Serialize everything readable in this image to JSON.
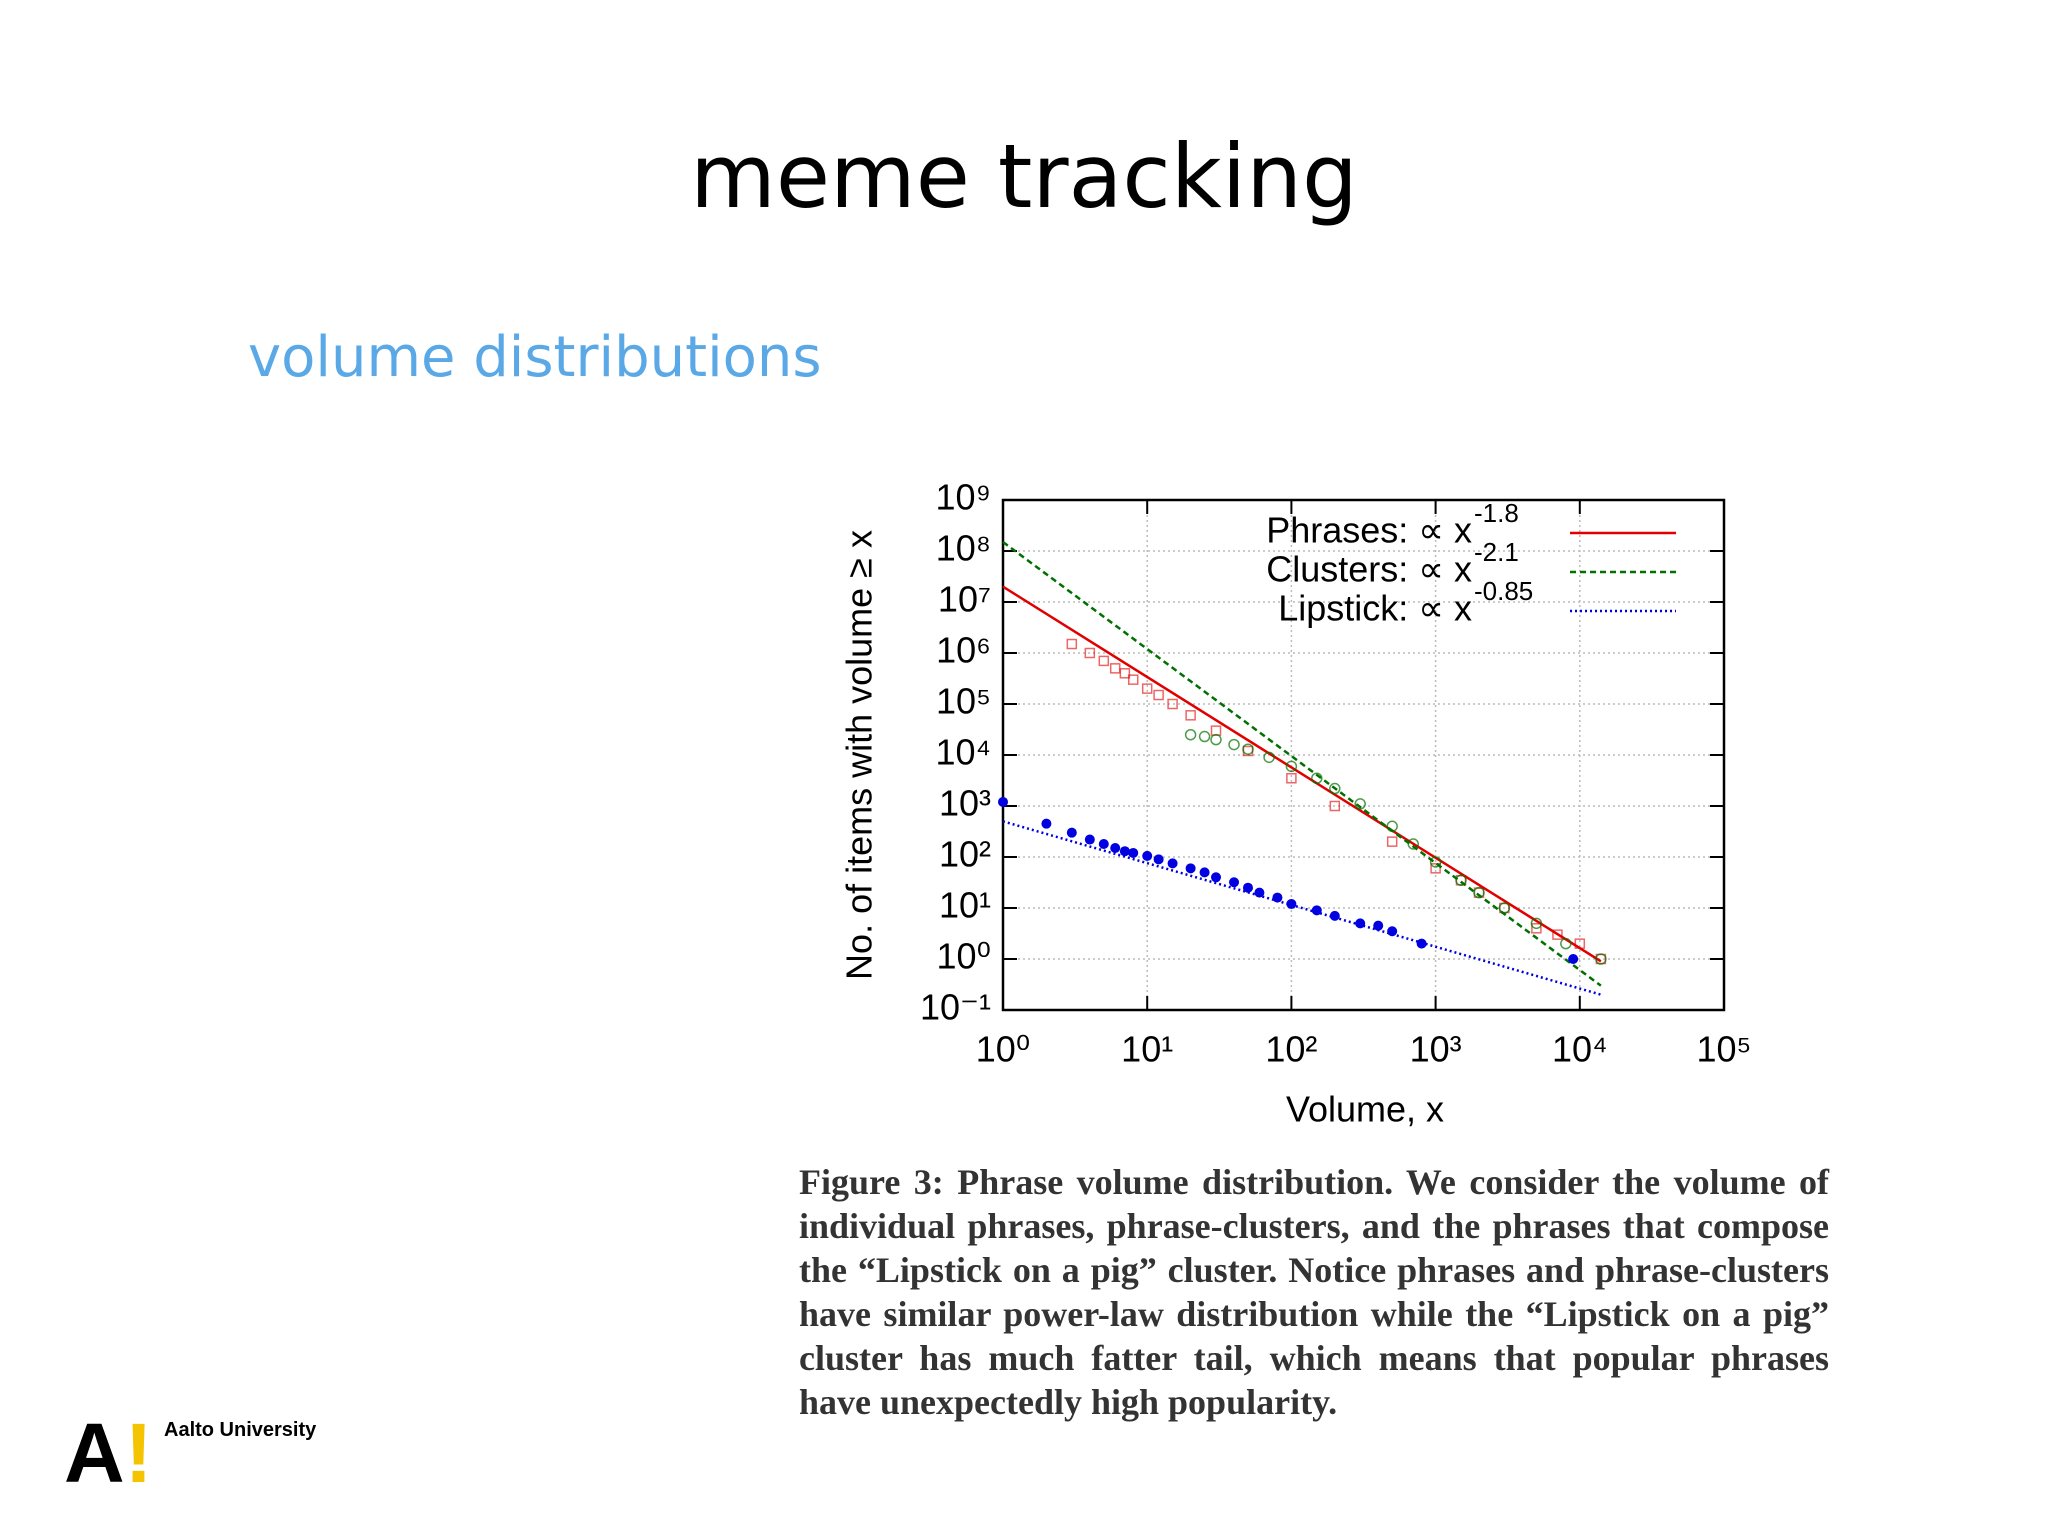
{
  "title": "meme tracking",
  "subtitle": "volume distributions",
  "caption": "Figure 3: Phrase volume distribution. We consider the volume of individual phrases, phrase-clusters, and the phrases that compose the “Lipstick on a pig” cluster.  Notice phrases and phrase-clusters have similar power-law distribution while the “Lipstick on a pig” cluster has much fatter tail, which means that popular phrases have unexpectedly high popularity.",
  "logo": {
    "mark": "A",
    "bang": "!",
    "name": "Aalto University"
  },
  "chart_data": {
    "type": "scatter",
    "xlabel": "Volume, x",
    "ylabel": "No. of items with volume ≥ x",
    "xscale": "log",
    "yscale": "log",
    "grid": true,
    "legend": "upper right",
    "xlim": [
      1,
      100000
    ],
    "ylim": [
      0.1,
      1000000000
    ],
    "xticks": [
      {
        "value": 1,
        "label": "10⁰"
      },
      {
        "value": 10,
        "label": "10¹"
      },
      {
        "value": 100,
        "label": "10²"
      },
      {
        "value": 1000,
        "label": "10³"
      },
      {
        "value": 10000,
        "label": "10⁴"
      },
      {
        "value": 100000,
        "label": "10⁵"
      }
    ],
    "yticks": [
      {
        "value": 0.1,
        "label": "10⁻¹"
      },
      {
        "value": 1,
        "label": "10⁰"
      },
      {
        "value": 10,
        "label": "10¹"
      },
      {
        "value": 100,
        "label": "10²"
      },
      {
        "value": 1000,
        "label": "10³"
      },
      {
        "value": 10000,
        "label": "10⁴"
      },
      {
        "value": 100000,
        "label": "10⁵"
      },
      {
        "value": 1000000,
        "label": "10⁶"
      },
      {
        "value": 10000000,
        "label": "10⁷"
      },
      {
        "value": 100000000,
        "label": "10⁸"
      },
      {
        "value": 1000000000,
        "label": "10⁹"
      }
    ],
    "series": [
      {
        "name": "Phrases: ∝ x",
        "exponent": -1.8,
        "color": "#e00000",
        "marker": "square",
        "line_style": "solid",
        "x": [
          3,
          4,
          5,
          6,
          7,
          8,
          10,
          12,
          15,
          20,
          30,
          50,
          100,
          200,
          500,
          1000,
          1500,
          2000,
          3000,
          5000,
          7000,
          10000,
          14000
        ],
        "values": [
          1500000,
          1000000,
          700000,
          500000,
          400000,
          300000,
          200000,
          150000,
          100000,
          60000,
          30000,
          12000,
          3500,
          1000,
          200,
          60,
          35,
          20,
          10,
          4,
          3,
          2,
          1
        ],
        "fit": {
          "x": [
            1,
            14000
          ],
          "values": [
            20000000,
            0.9
          ]
        }
      },
      {
        "name": "Clusters: ∝ x",
        "exponent": -2.1,
        "color": "#007000",
        "marker": "circle",
        "line_style": "dashed",
        "x": [
          20,
          25,
          30,
          40,
          50,
          70,
          100,
          150,
          200,
          300,
          500,
          700,
          1000,
          1500,
          2000,
          3000,
          5000,
          8000,
          14000
        ],
        "values": [
          25000,
          23000,
          20000,
          16000,
          13000,
          9000,
          6000,
          3500,
          2200,
          1100,
          400,
          180,
          80,
          35,
          20,
          10,
          5,
          2,
          1
        ],
        "fit": {
          "x": [
            1,
            14000
          ],
          "values": [
            150000000,
            0.3
          ]
        }
      },
      {
        "name": "Lipstick: ∝ x",
        "exponent": -0.85,
        "color": "#0000e0",
        "marker": "dot",
        "line_style": "dotted",
        "x": [
          1,
          2,
          3,
          4,
          5,
          6,
          7,
          8,
          10,
          12,
          15,
          20,
          25,
          30,
          40,
          50,
          60,
          80,
          100,
          150,
          200,
          300,
          400,
          500,
          800,
          9000
        ],
        "values": [
          1200,
          450,
          300,
          220,
          180,
          150,
          130,
          120,
          105,
          90,
          75,
          60,
          50,
          40,
          32,
          25,
          20,
          16,
          12,
          9,
          7,
          5,
          4.5,
          3.5,
          2,
          1
        ],
        "fit": {
          "x": [
            1,
            14000
          ],
          "values": [
            500,
            0.2
          ]
        }
      }
    ]
  }
}
